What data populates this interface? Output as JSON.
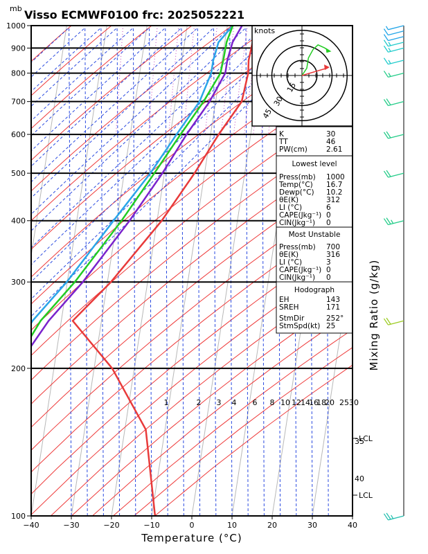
{
  "chart_data": {
    "type": "skew-t",
    "title": "Visso ECMWF0100  frc: 2025052221",
    "y_unit": "mb",
    "xlabel": "Temperature (°C)",
    "right_label": "Mixing Ratio (g/kg)",
    "xlim": [
      -40,
      40
    ],
    "ylim": [
      1000,
      100
    ],
    "x_ticks": [
      -40,
      -30,
      -20,
      -10,
      0,
      10,
      20,
      30,
      40
    ],
    "y_ticks": [
      100,
      200,
      300,
      400,
      500,
      600,
      700,
      800,
      900,
      1000
    ],
    "mixing_ratio_labels": [
      "1",
      "2",
      "3",
      "4",
      "6",
      "8",
      "10",
      "12",
      "14",
      "16",
      "18",
      "20",
      "25",
      "30"
    ],
    "theta_e_labels": [
      "35",
      "40"
    ],
    "lcl_labels": [
      "LCL",
      "LCL"
    ],
    "series": [
      {
        "name": "temperature",
        "color": "#e83a3a",
        "points": [
          [
            1000,
            16.7
          ],
          [
            925,
            14.5
          ],
          [
            850,
            12.8
          ],
          [
            800,
            12.2
          ],
          [
            700,
            9.5
          ],
          [
            600,
            2.5
          ],
          [
            500,
            -5
          ],
          [
            400,
            -15
          ],
          [
            300,
            -30
          ],
          [
            250,
            -41
          ],
          [
            200,
            -33
          ],
          [
            150,
            -27
          ],
          [
            100,
            -28
          ]
        ]
      },
      {
        "name": "dewpoint",
        "color": "#2aa5e8",
        "points": [
          [
            1000,
            10.2
          ],
          [
            925,
            6
          ],
          [
            850,
            4
          ],
          [
            800,
            3
          ],
          [
            700,
            -1
          ],
          [
            600,
            -8
          ],
          [
            500,
            -16
          ],
          [
            400,
            -27
          ],
          [
            300,
            -41
          ],
          [
            250,
            -51
          ],
          [
            200,
            -60
          ],
          [
            150,
            -70
          ],
          [
            120,
            -78
          ]
        ]
      },
      {
        "name": "parcel",
        "color": "#22cc22",
        "points": [
          [
            1000,
            10.2
          ],
          [
            925,
            8
          ],
          [
            850,
            6.5
          ],
          [
            800,
            5.3
          ],
          [
            700,
            0
          ],
          [
            600,
            -7
          ],
          [
            500,
            -15
          ],
          [
            400,
            -25
          ],
          [
            300,
            -39
          ],
          [
            250,
            -49
          ],
          [
            200,
            -58
          ],
          [
            150,
            -63
          ],
          [
            100,
            -68
          ]
        ]
      },
      {
        "name": "virtual",
        "color": "#7a22cc",
        "points": [
          [
            1000,
            12.5
          ],
          [
            925,
            9.5
          ],
          [
            850,
            7.5
          ],
          [
            800,
            6.5
          ],
          [
            700,
            1.5
          ],
          [
            600,
            -5.5
          ],
          [
            500,
            -13
          ],
          [
            400,
            -23
          ],
          [
            300,
            -37
          ],
          [
            250,
            -47
          ],
          [
            200,
            -57
          ],
          [
            150,
            -68
          ],
          [
            120,
            -74
          ]
        ]
      }
    ],
    "wind_barbs": [
      {
        "p": 100,
        "dir": 250,
        "spd": 25,
        "color": "#26c0b0"
      },
      {
        "p": 250,
        "dir": 250,
        "spd": 20,
        "color": "#9ccc22"
      },
      {
        "p": 400,
        "dir": 250,
        "spd": 25,
        "color": "#22cc88"
      },
      {
        "p": 500,
        "dir": 250,
        "spd": 20,
        "color": "#22cc88"
      },
      {
        "p": 600,
        "dir": 250,
        "spd": 20,
        "color": "#22cc88"
      },
      {
        "p": 700,
        "dir": 250,
        "spd": 20,
        "color": "#22cc88"
      },
      {
        "p": 800,
        "dir": 250,
        "spd": 15,
        "color": "#22cc88"
      },
      {
        "p": 850,
        "dir": 250,
        "spd": 15,
        "color": "#22cccc"
      },
      {
        "p": 900,
        "dir": 250,
        "spd": 15,
        "color": "#22cccc"
      },
      {
        "p": 925,
        "dir": 250,
        "spd": 15,
        "color": "#22cccc"
      },
      {
        "p": 950,
        "dir": 250,
        "spd": 10,
        "color": "#22a5e8"
      },
      {
        "p": 975,
        "dir": 250,
        "spd": 10,
        "color": "#22a5e8"
      },
      {
        "p": 1000,
        "dir": 250,
        "spd": 5,
        "color": "#22a5e8"
      }
    ],
    "hodograph": {
      "unit": "knots",
      "ring_labels": [
        "15",
        "30",
        "45"
      ],
      "green_trace": [
        [
          0,
          0
        ],
        [
          3,
          5
        ],
        [
          4,
          12
        ],
        [
          7,
          18
        ],
        [
          10,
          21
        ],
        [
          14,
          19
        ],
        [
          17,
          17
        ]
      ],
      "red_arrow": [
        [
          0,
          0
        ],
        [
          15,
          5
        ]
      ]
    }
  },
  "indices": {
    "k_label": "K",
    "k": "30",
    "tt_label": "TT",
    "tt": "46",
    "pw_label": "PW(cm)",
    "pw": "2.61"
  },
  "lowest_level": {
    "header": "Lowest level",
    "rows": [
      {
        "label": "Press(mb)",
        "value": "1000"
      },
      {
        "label": "Temp(°C)",
        "value": "16.7"
      },
      {
        "label": "Dewp(°C)",
        "value": "10.2"
      },
      {
        "label": "θE(K)",
        "value": "312"
      },
      {
        "label": "LI (°C)",
        "value": "6"
      },
      {
        "label": "CAPE(Jkg⁻¹)",
        "value": "0"
      },
      {
        "label": "CIN(Jkg⁻¹)",
        "value": "0"
      }
    ]
  },
  "most_unstable": {
    "header": "Most Unstable",
    "rows": [
      {
        "label": "Press(mb)",
        "value": "700"
      },
      {
        "label": "θE(K)",
        "value": "316"
      },
      {
        "label": "LI (°C)",
        "value": "3"
      },
      {
        "label": "CAPE(Jkg⁻¹)",
        "value": "0"
      },
      {
        "label": "CIN(Jkg⁻¹)",
        "value": "0"
      }
    ]
  },
  "hodograph_box": {
    "header": "Hodograph",
    "rows": [
      {
        "label": "EH",
        "value": "143"
      },
      {
        "label": "SREH",
        "value": "171"
      },
      {
        "label": "StmDir",
        "value": "252°"
      },
      {
        "label": "StmSpd(kt)",
        "value": "25"
      }
    ]
  }
}
